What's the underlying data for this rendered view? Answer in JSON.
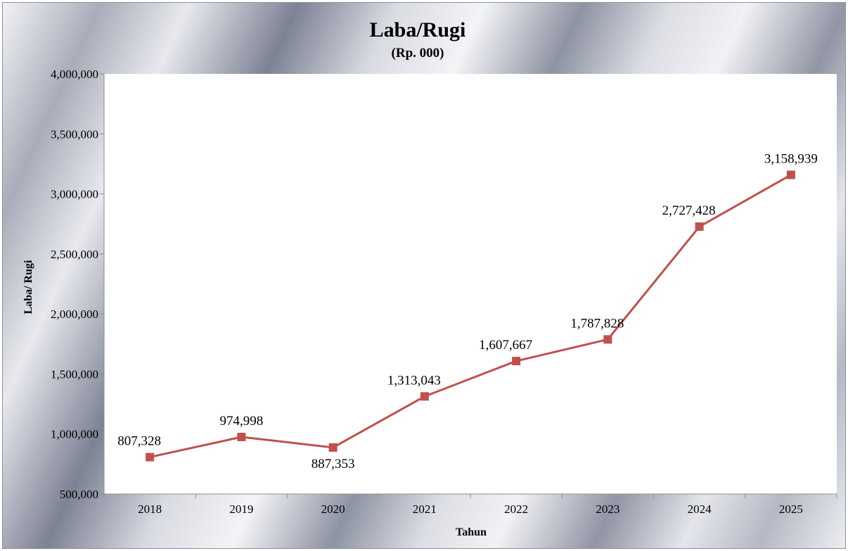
{
  "chart_data": {
    "type": "line",
    "title": "Laba/Rugi",
    "subtitle": "(Rp. 000)",
    "xlabel": "Tahun",
    "ylabel": "Laba/ Rugi",
    "categories": [
      "2018",
      "2019",
      "2020",
      "2021",
      "2022",
      "2023",
      "2024",
      "2025"
    ],
    "series": [
      {
        "values": [
          807328,
          974998,
          887353,
          1313043,
          1607667,
          1787828,
          2727428,
          3158939
        ],
        "labels": [
          "807,328",
          "974,998",
          "887,353",
          "1,313,043",
          "1,607,667",
          "1,787,828",
          "2,727,428",
          "3,158,939"
        ]
      }
    ],
    "ylim": [
      500000,
      4000000
    ],
    "yticks": [
      500000,
      1000000,
      1500000,
      2000000,
      2500000,
      3000000,
      3500000,
      4000000
    ],
    "ytick_labels": [
      "500,000",
      "1,000,000",
      "1,500,000",
      "2,000,000",
      "2,500,000",
      "3,000,000",
      "3,500,000",
      "4,000,000"
    ],
    "grid": false,
    "legend": "none",
    "colors": {
      "line": "#c0504d",
      "plot_background": "#ffffff",
      "axis": "#8c8c8c"
    }
  }
}
